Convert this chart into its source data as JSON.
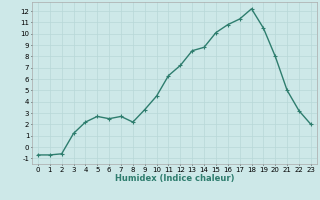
{
  "x": [
    0,
    1,
    2,
    3,
    4,
    5,
    6,
    7,
    8,
    9,
    10,
    11,
    12,
    13,
    14,
    15,
    16,
    17,
    18,
    19,
    20,
    21,
    22,
    23
  ],
  "y": [
    -0.7,
    -0.7,
    -0.6,
    1.2,
    2.2,
    2.7,
    2.5,
    2.7,
    2.2,
    3.3,
    4.5,
    6.3,
    7.2,
    8.5,
    8.8,
    10.1,
    10.8,
    11.3,
    12.2,
    10.5,
    8.0,
    5.0,
    3.2,
    2.0
  ],
  "line_color": "#2e7d6e",
  "marker": "+",
  "marker_size": 3,
  "bg_color": "#cde8e8",
  "grid_color": "#b8d8d8",
  "xlabel": "Humidex (Indice chaleur)",
  "xlim": [
    -0.5,
    23.5
  ],
  "ylim": [
    -1.5,
    12.8
  ],
  "xticks": [
    0,
    1,
    2,
    3,
    4,
    5,
    6,
    7,
    8,
    9,
    10,
    11,
    12,
    13,
    14,
    15,
    16,
    17,
    18,
    19,
    20,
    21,
    22,
    23
  ],
  "yticks": [
    -1,
    0,
    1,
    2,
    3,
    4,
    5,
    6,
    7,
    8,
    9,
    10,
    11,
    12
  ],
  "xlabel_fontsize": 6,
  "tick_fontsize": 5,
  "line_width": 1.0
}
